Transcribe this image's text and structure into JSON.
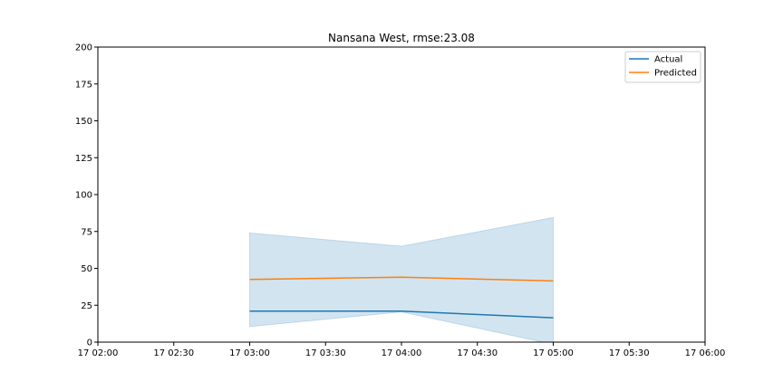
{
  "chart_data": {
    "type": "line",
    "title": "Nansana West, rmse:23.08",
    "xlabel": "",
    "ylabel": "",
    "xlim": [
      "17 02:00",
      "17 06:00"
    ],
    "ylim": [
      0,
      200
    ],
    "y_ticks": [
      0,
      25,
      50,
      75,
      100,
      125,
      150,
      175,
      200
    ],
    "x_ticks": [
      "17 02:00",
      "17 02:30",
      "17 03:00",
      "17 03:30",
      "17 04:00",
      "17 04:30",
      "17 05:00",
      "17 05:30",
      "17 06:00"
    ],
    "x": [
      "17 03:00",
      "17 04:00",
      "17 05:00"
    ],
    "series": [
      {
        "name": "Actual",
        "color": "#1f77b4",
        "values": [
          21,
          21,
          16.5
        ]
      },
      {
        "name": "Predicted",
        "color": "#ff7f0e",
        "values": [
          42.5,
          44,
          41.5
        ]
      }
    ],
    "band": {
      "color": "#1f77b4",
      "opacity": 0.2,
      "lower": [
        10.5,
        20.5,
        -1.5
      ],
      "upper": [
        74,
        65,
        84.5
      ]
    },
    "grid": false,
    "legend_position": "top-right"
  }
}
